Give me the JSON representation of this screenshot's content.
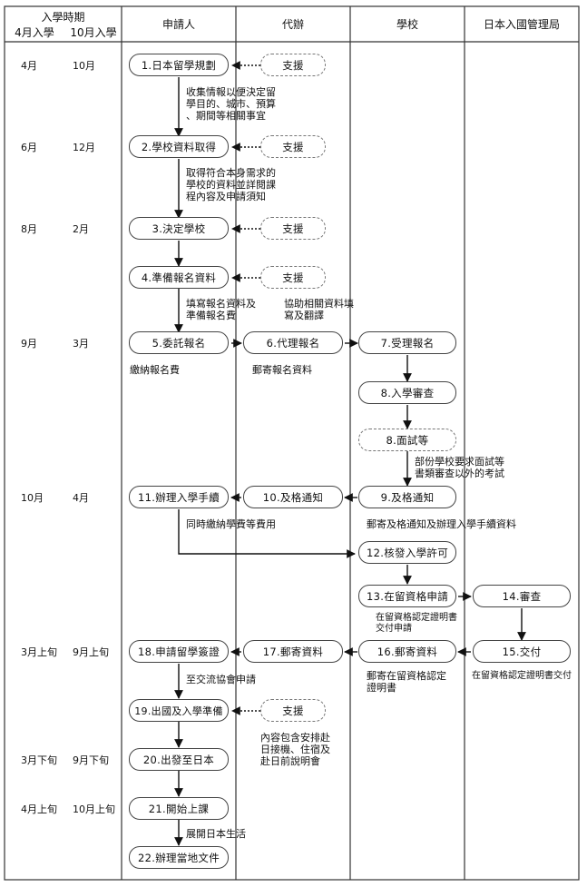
{
  "header": {
    "period_title": "入學時期",
    "col_april": "4月入學",
    "col_october": "10月入學",
    "applicant": "申請人",
    "agent": "代辦",
    "school": "學校",
    "immigration": "日本入國管理局"
  },
  "periods": [
    {
      "a": "4月",
      "b": "10月"
    },
    {
      "a": "6月",
      "b": "12月"
    },
    {
      "a": "8月",
      "b": "2月"
    },
    {
      "a": "9月",
      "b": "3月"
    },
    {
      "a": "10月",
      "b": "4月"
    },
    {
      "a": "3月上旬",
      "b": "9月上旬"
    },
    {
      "a": "3月下旬",
      "b": "9月下旬"
    },
    {
      "a": "4月上旬",
      "b": "10月上旬"
    }
  ],
  "nodes": {
    "n1": "1.日本留學規劃",
    "n2": "2.學校資料取得",
    "n3": "3.決定學校",
    "n4": "4.準備報名資料",
    "n5": "5.委託報名",
    "n6": "6.代理報名",
    "n7": "7.受理報名",
    "n8": "8.入學審查",
    "n9": "8.面試等",
    "n10": "9.及格通知",
    "n11": "10.及格通知",
    "n12": "11.辦理入學手續",
    "n13": "12.核發入學許可",
    "n14": "13.在留資格申請",
    "n15": "14.審查",
    "n16": "15.交付",
    "n17": "16.郵寄資料",
    "n18": "17.郵寄資料",
    "n19": "18.申請留學簽證",
    "n20": "19.出國及入學準備",
    "n21": "20.出發至日本",
    "n22": "21.開始上課",
    "n23": "22.辦理當地文件",
    "support": "支援"
  },
  "notes": {
    "t1": "收集情報以便決定留\n學目的、城市、預算\n、期間等相關事宜",
    "t2": "取得符合本身需求的\n學校的資料並詳閱課\n程內容及申請須知",
    "t3": "填寫報名資料及\n準備報名費",
    "t4": "協助相關資料填\n寫及翻譯",
    "t5": "繳納報名費",
    "t6": "郵寄報名資料",
    "t7": "部份學校要求面試等\n書類審查以外的考試",
    "t8": "同時繳納學費等費用",
    "t9": "郵寄及格通知及辦理入學手續資料",
    "t10": "在留資格認定證明書\n交付申請",
    "t11": "郵寄在留資格認定\n證明書",
    "t12": "在留資格認定證明書交付",
    "t13": "至交流協會申請",
    "t14": "內容包含安排赴\n日接機、住宿及\n赴日前說明會",
    "t15": "展開日本生活"
  }
}
